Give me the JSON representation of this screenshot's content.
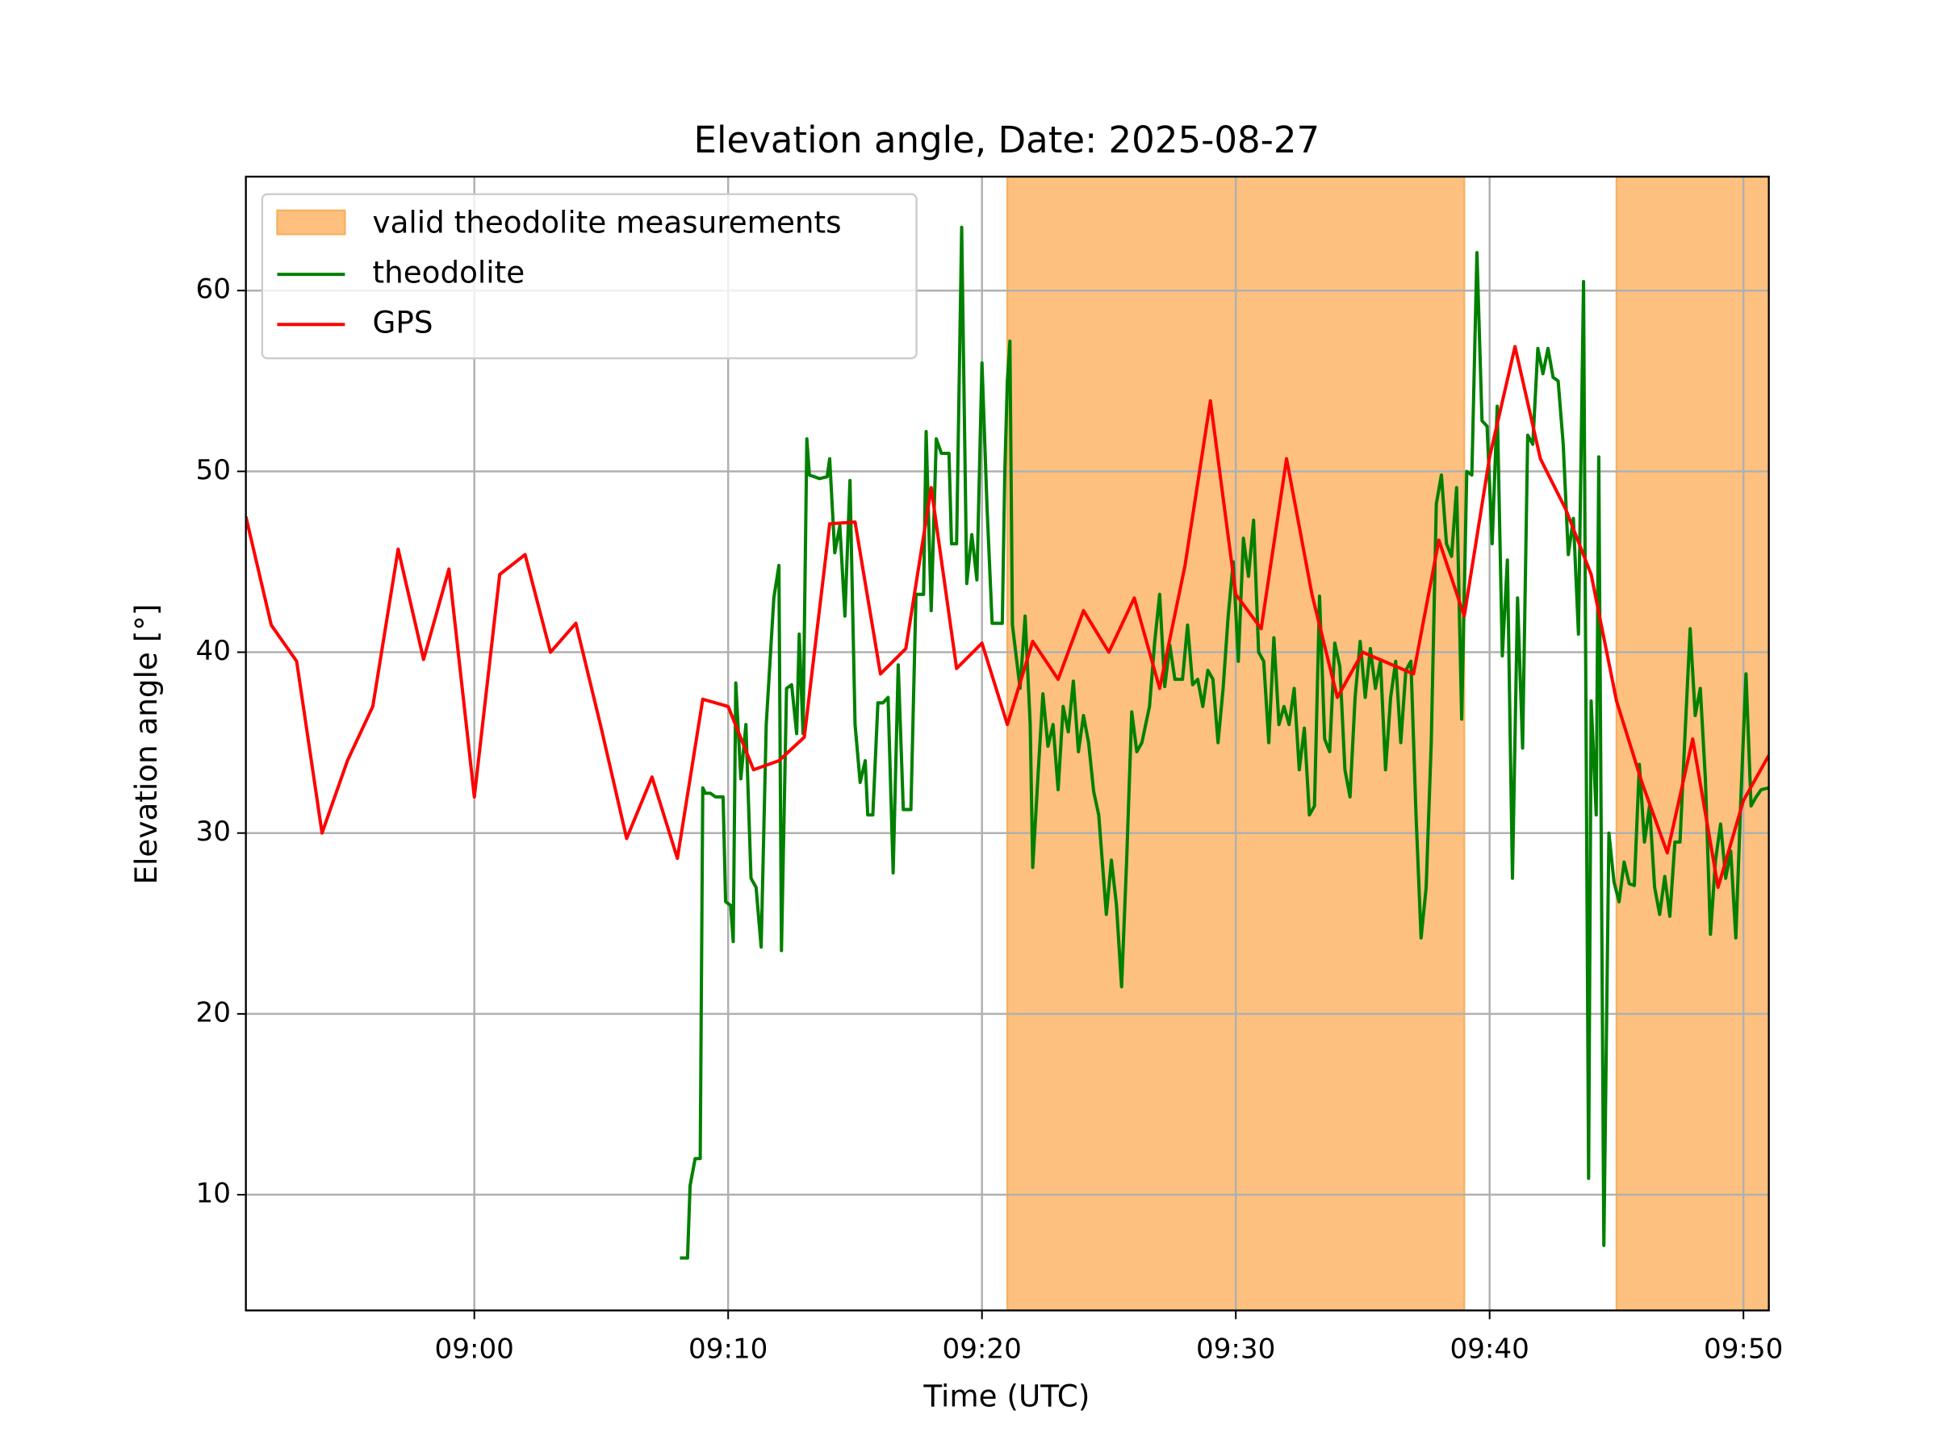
{
  "chart_data": {
    "type": "line",
    "title": "Elevation angle, Date: 2025-08-27",
    "x_label": "Time (UTC)",
    "y_label": "Elevation angle [°]",
    "xlim": [
      -9,
      51
    ],
    "ylim": [
      3.6,
      66.3
    ],
    "xticks": [
      {
        "value": 0,
        "label": "09:00"
      },
      {
        "value": 10,
        "label": "09:10"
      },
      {
        "value": 20,
        "label": "09:20"
      },
      {
        "value": 30,
        "label": "09:30"
      },
      {
        "value": 40,
        "label": "09:40"
      },
      {
        "value": 50,
        "label": "09:50"
      }
    ],
    "yticks": [
      10,
      20,
      30,
      40,
      50,
      60
    ],
    "grid": true,
    "legend": "upper left",
    "spans": {
      "name": "valid theodolite measurements",
      "color": "#fdc07e",
      "ranges": [
        [
          21,
          39
        ],
        [
          45,
          51
        ]
      ]
    },
    "series": [
      {
        "name": "theodolite",
        "color": "#008000",
        "x": [
          8.1,
          8.4,
          8.5,
          8.7,
          8.9,
          9.0,
          9.1,
          9.3,
          9.5,
          9.8,
          9.9,
          10.1,
          10.2,
          10.3,
          10.5,
          10.7,
          10.9,
          11.1,
          11.3,
          11.5,
          11.8,
          12.0,
          12.1,
          12.3,
          12.5,
          12.7,
          12.8,
          12.95,
          13.1,
          13.2,
          13.6,
          13.9,
          14.0,
          14.2,
          14.4,
          14.6,
          14.8,
          15.0,
          15.2,
          15.4,
          15.5,
          15.7,
          15.9,
          16.1,
          16.3,
          16.5,
          16.7,
          16.9,
          17.2,
          17.4,
          17.7,
          17.8,
          18.0,
          18.2,
          18.4,
          18.7,
          18.8,
          19.0,
          19.2,
          19.4,
          19.6,
          19.8,
          20.0,
          20.2,
          20.4,
          20.8,
          20.9,
          21.0,
          21.1,
          21.2,
          21.5,
          21.7,
          21.9,
          22.0,
          22.2,
          22.4,
          22.6,
          22.8,
          23.0,
          23.2,
          23.4,
          23.6,
          23.8,
          24.0,
          24.2,
          24.4,
          24.6,
          24.9,
          25.1,
          25.3,
          25.5,
          25.7,
          25.9,
          26.1,
          26.3,
          26.6,
          26.8,
          27.0,
          27.2,
          27.4,
          27.6,
          27.9,
          28.1,
          28.3,
          28.5,
          28.7,
          28.9,
          29.1,
          29.3,
          29.5,
          29.7,
          29.9,
          30.1,
          30.3,
          30.5,
          30.7,
          30.9,
          31.1,
          31.3,
          31.5,
          31.7,
          31.9,
          32.1,
          32.3,
          32.5,
          32.7,
          32.9,
          33.1,
          33.3,
          33.5,
          33.7,
          33.9,
          34.1,
          34.3,
          34.5,
          34.7,
          34.9,
          35.1,
          35.3,
          35.5,
          35.7,
          35.9,
          36.1,
          36.3,
          36.5,
          36.7,
          36.9,
          37.1,
          37.3,
          37.5,
          37.7,
          37.9,
          38.1,
          38.3,
          38.5,
          38.7,
          38.9,
          39.1,
          39.3,
          39.5,
          39.7,
          39.9,
          40.1,
          40.3,
          40.5,
          40.7,
          40.9,
          41.1,
          41.3,
          41.5,
          41.7,
          41.9,
          42.1,
          42.3,
          42.5,
          42.7,
          42.9,
          43.1,
          43.3,
          43.5,
          43.7,
          43.9,
          44.0,
          44.2,
          44.3,
          44.5,
          44.7,
          44.9,
          45.1,
          45.3,
          45.5,
          45.7,
          45.9,
          46.1,
          46.3,
          46.5,
          46.7,
          46.9,
          47.1,
          47.3,
          47.5,
          47.7,
          47.9,
          48.1,
          48.3,
          48.5,
          48.7,
          48.9,
          49.1,
          49.3,
          49.5,
          49.7,
          49.9,
          50.1,
          50.3,
          50.5,
          50.7,
          51
        ],
        "values": [
          6.5,
          6.5,
          10.5,
          12,
          12,
          32.5,
          32.2,
          32.2,
          32,
          32,
          26.2,
          26,
          24,
          38.3,
          33,
          36,
          27.5,
          27,
          23.7,
          36,
          43,
          44.8,
          23.5,
          38,
          38.2,
          35.5,
          41,
          35.5,
          51.8,
          49.8,
          49.6,
          49.7,
          50.7,
          45.5,
          47,
          42,
          49.5,
          36,
          32.8,
          34,
          31,
          31,
          37.2,
          37.2,
          37.5,
          27.8,
          39.3,
          31.3,
          31.3,
          43.2,
          43.2,
          52.2,
          42.3,
          51.8,
          51,
          51,
          46,
          46,
          63.5,
          43.8,
          46.5,
          44,
          56,
          48,
          41.6,
          41.6,
          50,
          55,
          57.2,
          41.5,
          38,
          42,
          36,
          28.1,
          33,
          37.7,
          34.8,
          36,
          32.4,
          37,
          35.6,
          38.4,
          34.5,
          36.5,
          35,
          32.3,
          31,
          25.5,
          28.5,
          26,
          21.5,
          28.5,
          36.7,
          34.5,
          35,
          37,
          40.5,
          43.2,
          38.1,
          40.4,
          38.5,
          38.5,
          41.5,
          38.2,
          38.5,
          37,
          39,
          38.5,
          35,
          38,
          42,
          45,
          39.5,
          46.3,
          44.2,
          47.3,
          40,
          39.5,
          35,
          40.8,
          36,
          37,
          36,
          38,
          33.5,
          35.8,
          31,
          31.5,
          43.1,
          35.2,
          34.5,
          40.5,
          39.2,
          33.5,
          32,
          37.5,
          40.6,
          37.5,
          40.2,
          38,
          39.5,
          33.5,
          37.5,
          39.5,
          35,
          39,
          39.5,
          31,
          24.2,
          27,
          35,
          48.2,
          49.8,
          46,
          45.3,
          49.1,
          36.3,
          50,
          49.8,
          62.1,
          52.8,
          52.5,
          46,
          53.6,
          39.8,
          45.1,
          27.5,
          43,
          34.7,
          52,
          51.5,
          56.8,
          55.4,
          56.8,
          55.2,
          55,
          51.5,
          45.4,
          47.4,
          41,
          60.5,
          10.9,
          37.3,
          31,
          50.8,
          7.2,
          30,
          27.3,
          26.2,
          28.4,
          27.2,
          27.1,
          33.8,
          29.5,
          31.5,
          27,
          25.5,
          27.6,
          25.4,
          29.5,
          29.5,
          35.5,
          41.3,
          36.5,
          38,
          33,
          24.4,
          28.5,
          30.5,
          27.5,
          29,
          24.2,
          32,
          38.8,
          31.5,
          32,
          32.4,
          32.5
        ]
      },
      {
        "name": "GPS",
        "color": "#ff0000",
        "x": [
          -9,
          -8,
          -7,
          -6,
          -5,
          -4,
          -3,
          -2,
          -1,
          0,
          1,
          2,
          3,
          4,
          5,
          6,
          7,
          8,
          9,
          10,
          11,
          12,
          13,
          14,
          15,
          16,
          17,
          18,
          19,
          20,
          21,
          22,
          23,
          24,
          25,
          26,
          27,
          28,
          29,
          30,
          31,
          32,
          33,
          34,
          35,
          36,
          37,
          38,
          39,
          40,
          41,
          42,
          43,
          44,
          45,
          46,
          47,
          48,
          49,
          50,
          51
        ],
        "values": [
          47.5,
          41.5,
          39.5,
          30,
          34,
          37,
          45.7,
          39.6,
          44.6,
          32,
          44.3,
          45.4,
          40,
          41.6,
          35.8,
          29.7,
          33.1,
          28.6,
          37.4,
          37,
          33.5,
          34,
          35.3,
          47.1,
          47.2,
          38.8,
          40.2,
          49.1,
          39.1,
          40.5,
          36,
          40.6,
          38.5,
          42.3,
          40,
          43,
          38,
          44.8,
          53.9,
          43.2,
          41.3,
          50.7,
          43.2,
          37.5,
          40,
          39.4,
          38.8,
          46.2,
          42,
          50.8,
          56.9,
          50.7,
          47.9,
          44.3,
          37.3,
          32.8,
          28.9,
          35.2,
          27,
          31.8,
          34.3
        ]
      }
    ]
  }
}
